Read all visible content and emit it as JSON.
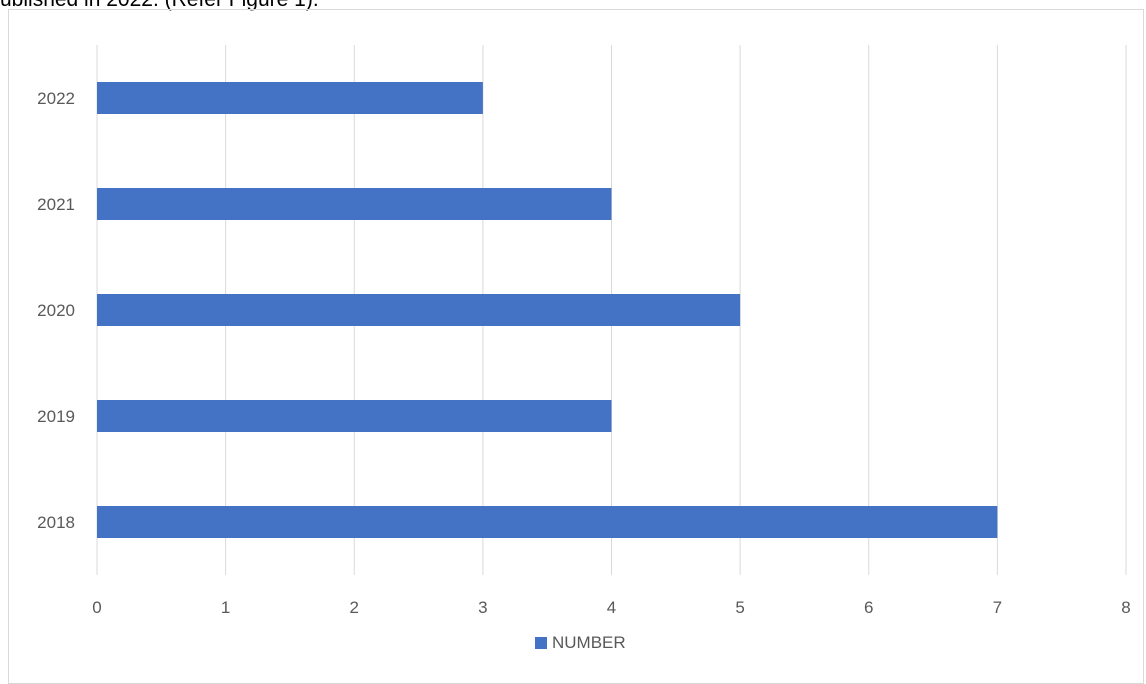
{
  "caption": "ublished in 2022. (Refer Figure 1).",
  "colors": {
    "bar": "#4472c4",
    "grid": "#d9d9d9",
    "text": "#595959"
  },
  "legend": {
    "label": "NUMBER"
  },
  "chart_data": {
    "type": "bar",
    "orientation": "horizontal",
    "categories": [
      "2018",
      "2019",
      "2020",
      "2021",
      "2022"
    ],
    "series": [
      {
        "name": "NUMBER",
        "values": [
          7,
          4,
          5,
          4,
          3
        ]
      }
    ],
    "xlim": [
      0,
      8
    ],
    "x_ticks": [
      "0",
      "1",
      "2",
      "3",
      "4",
      "5",
      "6",
      "7",
      "8"
    ],
    "grid": "vertical",
    "legend_position": "bottom"
  }
}
